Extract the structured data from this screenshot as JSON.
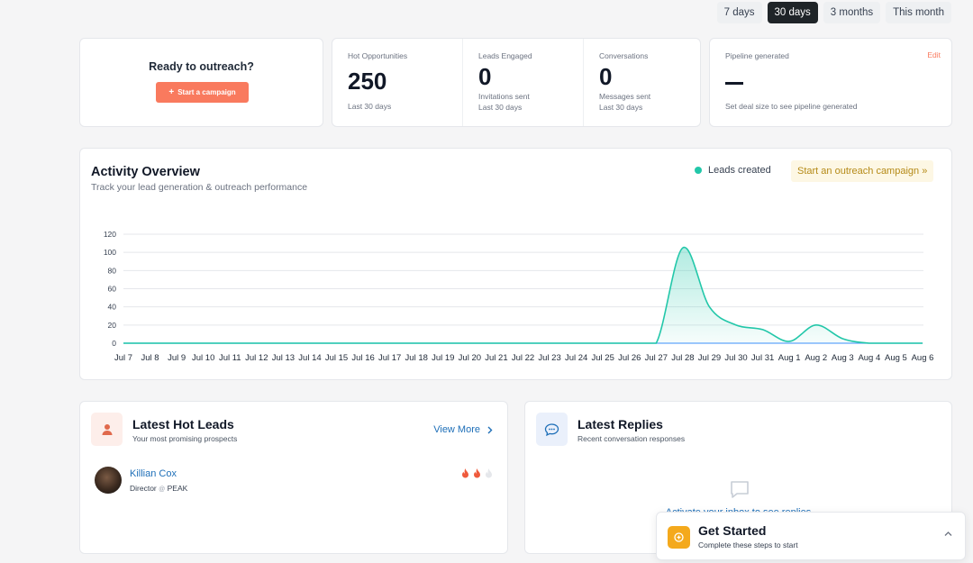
{
  "range_tabs": [
    "7 days",
    "30 days",
    "3 months",
    "This month"
  ],
  "active_range": "30 days",
  "outreach": {
    "title": "Ready to outreach?",
    "button_label": "Start a campaign"
  },
  "stats": [
    {
      "label": "Hot Opportunities",
      "value": "250",
      "sub1": "Last 30 days",
      "sub2": ""
    },
    {
      "label": "Leads Engaged",
      "value": "0",
      "sub1": "Invitations sent",
      "sub2": "Last 30 days"
    },
    {
      "label": "Conversations",
      "value": "0",
      "sub1": "Messages sent",
      "sub2": "Last 30 days"
    }
  ],
  "pipeline": {
    "label": "Pipeline generated",
    "edit_label": "Edit",
    "subtext": "Set deal size to see pipeline generated"
  },
  "activity": {
    "title": "Activity Overview",
    "subtitle": "Track your lead generation & outreach performance",
    "legend_label": "Leads created",
    "campaign_link": "Start an outreach campaign »"
  },
  "chart_data": {
    "type": "area",
    "x": [
      "Jul 7",
      "Jul 8",
      "Jul 9",
      "Jul 10",
      "Jul 11",
      "Jul 12",
      "Jul 13",
      "Jul 14",
      "Jul 15",
      "Jul 16",
      "Jul 17",
      "Jul 18",
      "Jul 19",
      "Jul 20",
      "Jul 21",
      "Jul 22",
      "Jul 23",
      "Jul 24",
      "Jul 25",
      "Jul 26",
      "Jul 27",
      "Jul 28",
      "Jul 29",
      "Jul 30",
      "Jul 31",
      "Aug 1",
      "Aug 2",
      "Aug 3",
      "Aug 4",
      "Aug 5",
      "Aug 6"
    ],
    "series": [
      {
        "name": "Leads created",
        "values": [
          0,
          0,
          0,
          0,
          0,
          0,
          0,
          0,
          0,
          0,
          0,
          0,
          0,
          0,
          0,
          0,
          0,
          0,
          0,
          0,
          0,
          105,
          40,
          20,
          15,
          2,
          20,
          5,
          0,
          0,
          0
        ]
      }
    ],
    "yticks": [
      0,
      20,
      40,
      60,
      80,
      100,
      120
    ],
    "ylim": [
      0,
      120
    ],
    "grid": true,
    "color": "#22c7a9"
  },
  "hot_leads": {
    "title": "Latest Hot Leads",
    "subtitle": "Your most promising prospects",
    "view_more": "View More",
    "leads": [
      {
        "name": "Killian Cox",
        "title": "Director",
        "company": "PEAK",
        "fire_level": 2
      }
    ]
  },
  "replies": {
    "title": "Latest Replies",
    "subtitle": "Recent conversation responses",
    "empty_text": "Activate your inbox to see replies"
  },
  "get_started": {
    "title": "Get Started",
    "subtitle": "Complete these steps to start"
  }
}
